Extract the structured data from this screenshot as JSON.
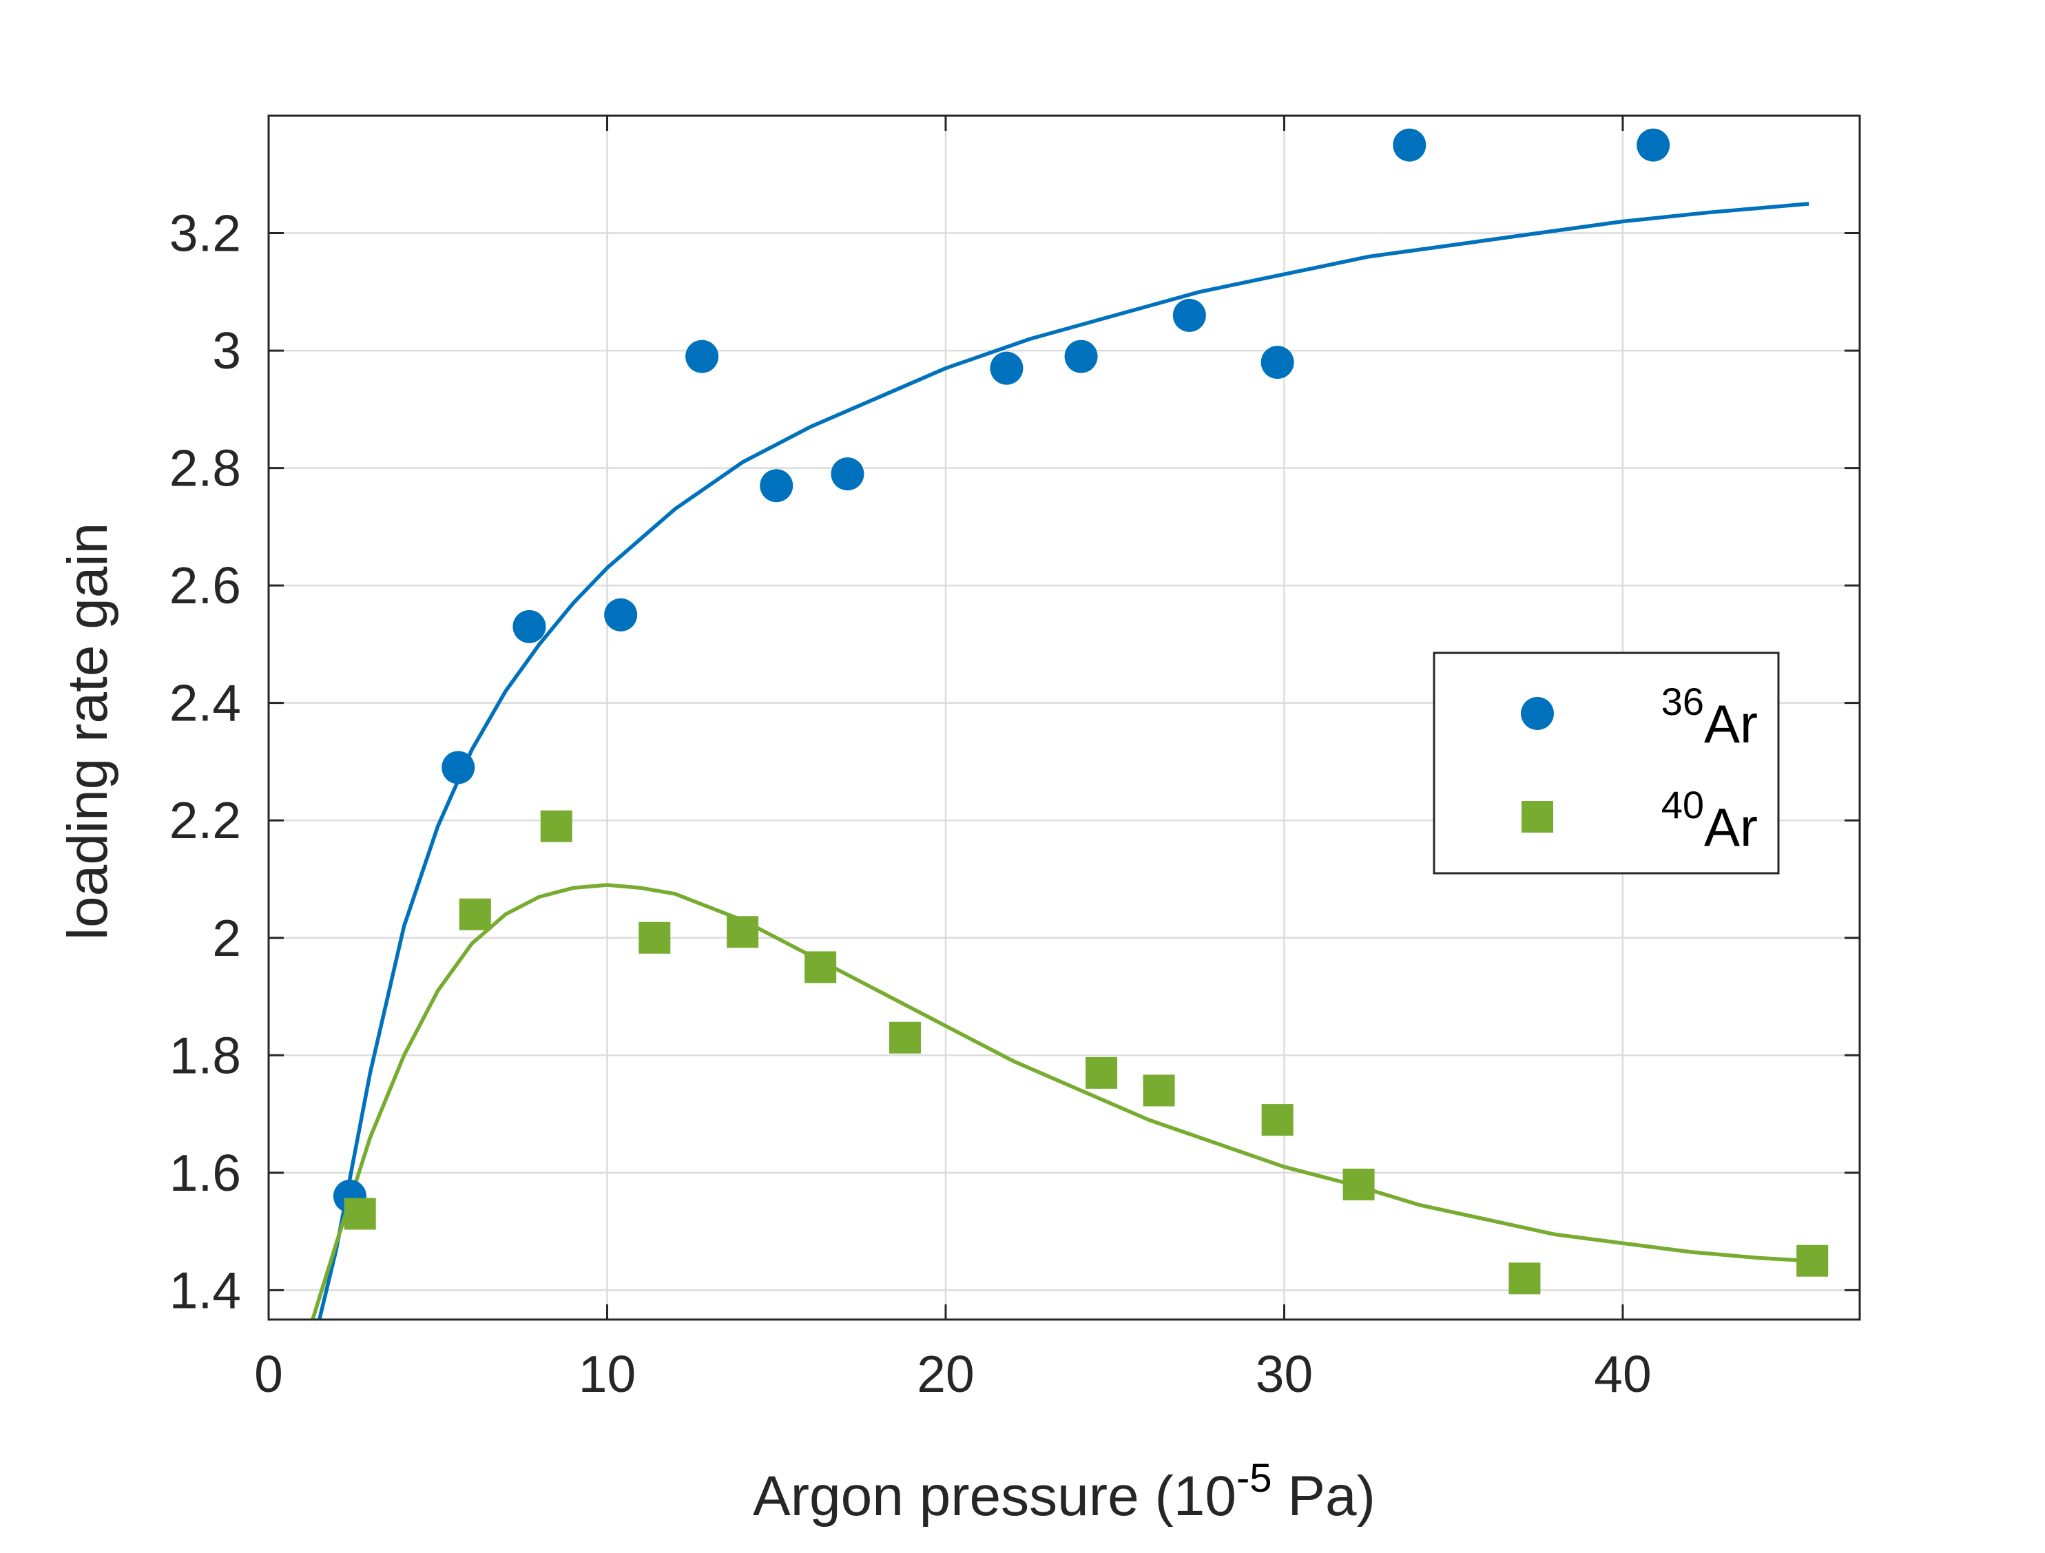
{
  "chart_data": {
    "type": "scatter",
    "xlabel": {
      "base": "Argon pressure (10",
      "sup": "-5",
      "rest": " Pa)"
    },
    "ylabel": "loading rate gain",
    "xlim": [
      0,
      47
    ],
    "ylim": [
      1.35,
      3.4
    ],
    "xticks": [
      0,
      10,
      20,
      30,
      40
    ],
    "yticks": [
      1.4,
      1.6,
      1.8,
      2.0,
      2.2,
      2.4,
      2.6,
      2.8,
      3.0,
      3.2
    ],
    "ytick_labels": [
      "1.4",
      "1.6",
      "1.8",
      "2",
      "2.2",
      "2.4",
      "2.6",
      "2.8",
      "3",
      "3.2"
    ],
    "xtick_labels": [
      "0",
      "10",
      "20",
      "30",
      "40"
    ],
    "grid": true,
    "box": true,
    "legend_position": "right-middle",
    "series": [
      {
        "name": "36Ar",
        "legend_sup": "36",
        "legend_base": "Ar",
        "marker": "circle",
        "color": "#0072BD",
        "points": [
          [
            2.4,
            1.56
          ],
          [
            5.6,
            2.29
          ],
          [
            7.7,
            2.53
          ],
          [
            10.4,
            2.55
          ],
          [
            12.8,
            2.99
          ],
          [
            15.0,
            2.77
          ],
          [
            17.1,
            2.79
          ],
          [
            21.8,
            2.97
          ],
          [
            24.0,
            2.99
          ],
          [
            27.2,
            3.06
          ],
          [
            29.8,
            2.98
          ],
          [
            33.7,
            3.35
          ],
          [
            40.9,
            3.35
          ]
        ],
        "fit": [
          [
            1.5,
            1.35
          ],
          [
            2.0,
            1.47
          ],
          [
            3.0,
            1.77
          ],
          [
            4.0,
            2.02
          ],
          [
            5.0,
            2.19
          ],
          [
            6.0,
            2.32
          ],
          [
            7.0,
            2.42
          ],
          [
            8.0,
            2.5
          ],
          [
            9.0,
            2.57
          ],
          [
            10.0,
            2.63
          ],
          [
            12.0,
            2.73
          ],
          [
            14.0,
            2.81
          ],
          [
            16.0,
            2.87
          ],
          [
            18.0,
            2.92
          ],
          [
            20.0,
            2.97
          ],
          [
            22.5,
            3.02
          ],
          [
            25.0,
            3.06
          ],
          [
            27.5,
            3.1
          ],
          [
            30.0,
            3.13
          ],
          [
            32.5,
            3.16
          ],
          [
            35.0,
            3.18
          ],
          [
            37.5,
            3.2
          ],
          [
            40.0,
            3.22
          ],
          [
            42.5,
            3.235
          ],
          [
            45.5,
            3.25
          ]
        ]
      },
      {
        "name": "40Ar",
        "legend_sup": "40",
        "legend_base": "Ar",
        "marker": "square",
        "color": "#77AC30",
        "points": [
          [
            2.7,
            1.53
          ],
          [
            6.1,
            2.04
          ],
          [
            8.5,
            2.19
          ],
          [
            11.4,
            2.0
          ],
          [
            14.0,
            2.01
          ],
          [
            16.3,
            1.95
          ],
          [
            18.8,
            1.83
          ],
          [
            24.6,
            1.77
          ],
          [
            26.3,
            1.74
          ],
          [
            29.8,
            1.69
          ],
          [
            32.2,
            1.58
          ],
          [
            37.1,
            1.42
          ],
          [
            45.6,
            1.45
          ]
        ],
        "fit": [
          [
            1.3,
            1.35
          ],
          [
            2.0,
            1.48
          ],
          [
            3.0,
            1.66
          ],
          [
            4.0,
            1.8
          ],
          [
            5.0,
            1.91
          ],
          [
            6.0,
            1.99
          ],
          [
            7.0,
            2.04
          ],
          [
            8.0,
            2.07
          ],
          [
            9.0,
            2.085
          ],
          [
            10.0,
            2.09
          ],
          [
            11.0,
            2.085
          ],
          [
            12.0,
            2.075
          ],
          [
            14.0,
            2.03
          ],
          [
            16.0,
            1.97
          ],
          [
            18.0,
            1.91
          ],
          [
            20.0,
            1.85
          ],
          [
            22.0,
            1.79
          ],
          [
            24.0,
            1.74
          ],
          [
            26.0,
            1.69
          ],
          [
            28.0,
            1.65
          ],
          [
            30.0,
            1.61
          ],
          [
            32.0,
            1.58
          ],
          [
            34.0,
            1.545
          ],
          [
            36.0,
            1.52
          ],
          [
            38.0,
            1.495
          ],
          [
            40.0,
            1.48
          ],
          [
            42.0,
            1.465
          ],
          [
            44.0,
            1.455
          ],
          [
            45.5,
            1.45
          ]
        ]
      }
    ]
  }
}
